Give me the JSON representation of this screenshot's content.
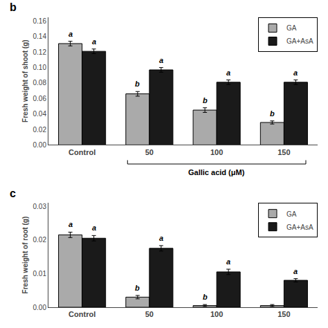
{
  "chart_data": [
    {
      "type": "bar",
      "title": "b",
      "ylabel": "Fresh weight of shoot (g)",
      "xlabel": "Gallic acid (μM)",
      "categories": [
        "Control",
        "50",
        "100",
        "150"
      ],
      "series": [
        {
          "name": "GA",
          "color": "#aaaaaa",
          "values": [
            0.131,
            0.066,
            0.045,
            0.029
          ],
          "errors": [
            0.003,
            0.003,
            0.003,
            0.002
          ],
          "letters": [
            "a",
            "b",
            "b",
            "b"
          ]
        },
        {
          "name": "GA+AsA",
          "color": "#1a1a1a",
          "values": [
            0.121,
            0.097,
            0.081,
            0.081
          ],
          "errors": [
            0.003,
            0.003,
            0.003,
            0.003
          ],
          "letters": [
            "a",
            "a",
            "a",
            "a"
          ]
        }
      ],
      "ylim": [
        0.0,
        0.165
      ],
      "yticks": [
        {
          "value": 0,
          "label": "0.00"
        },
        0.02,
        0.04,
        0.06,
        0.08,
        {
          "value": 0.1,
          "label": "0.10"
        },
        0.12,
        0.14,
        0.16
      ],
      "grid": false,
      "legend": "upper right"
    },
    {
      "type": "bar",
      "title": "c",
      "ylabel": "Fresh weight of root (g)",
      "categories": [
        "Control",
        "50",
        "100",
        "150"
      ],
      "series": [
        {
          "name": "GA",
          "color": "#aaaaaa",
          "values": [
            0.0215,
            0.003,
            0.0005,
            0.0005
          ],
          "errors": [
            0.0008,
            0.0005,
            0.0003,
            0.0003
          ],
          "letters": [
            "a",
            "b",
            "b",
            null
          ]
        },
        {
          "name": "GA+AsA",
          "color": "#1a1a1a",
          "values": [
            0.0205,
            0.0175,
            0.0105,
            0.008
          ],
          "errors": [
            0.0008,
            0.0008,
            0.0008,
            0.0005
          ],
          "letters": [
            "a",
            "a",
            "a",
            "a"
          ]
        }
      ],
      "ylim": [
        0.0,
        0.031
      ],
      "yticks": [
        {
          "value": 0,
          "label": "0.00"
        },
        0.01,
        0.02,
        0.03
      ],
      "grid": false,
      "legend": "upper right"
    }
  ]
}
